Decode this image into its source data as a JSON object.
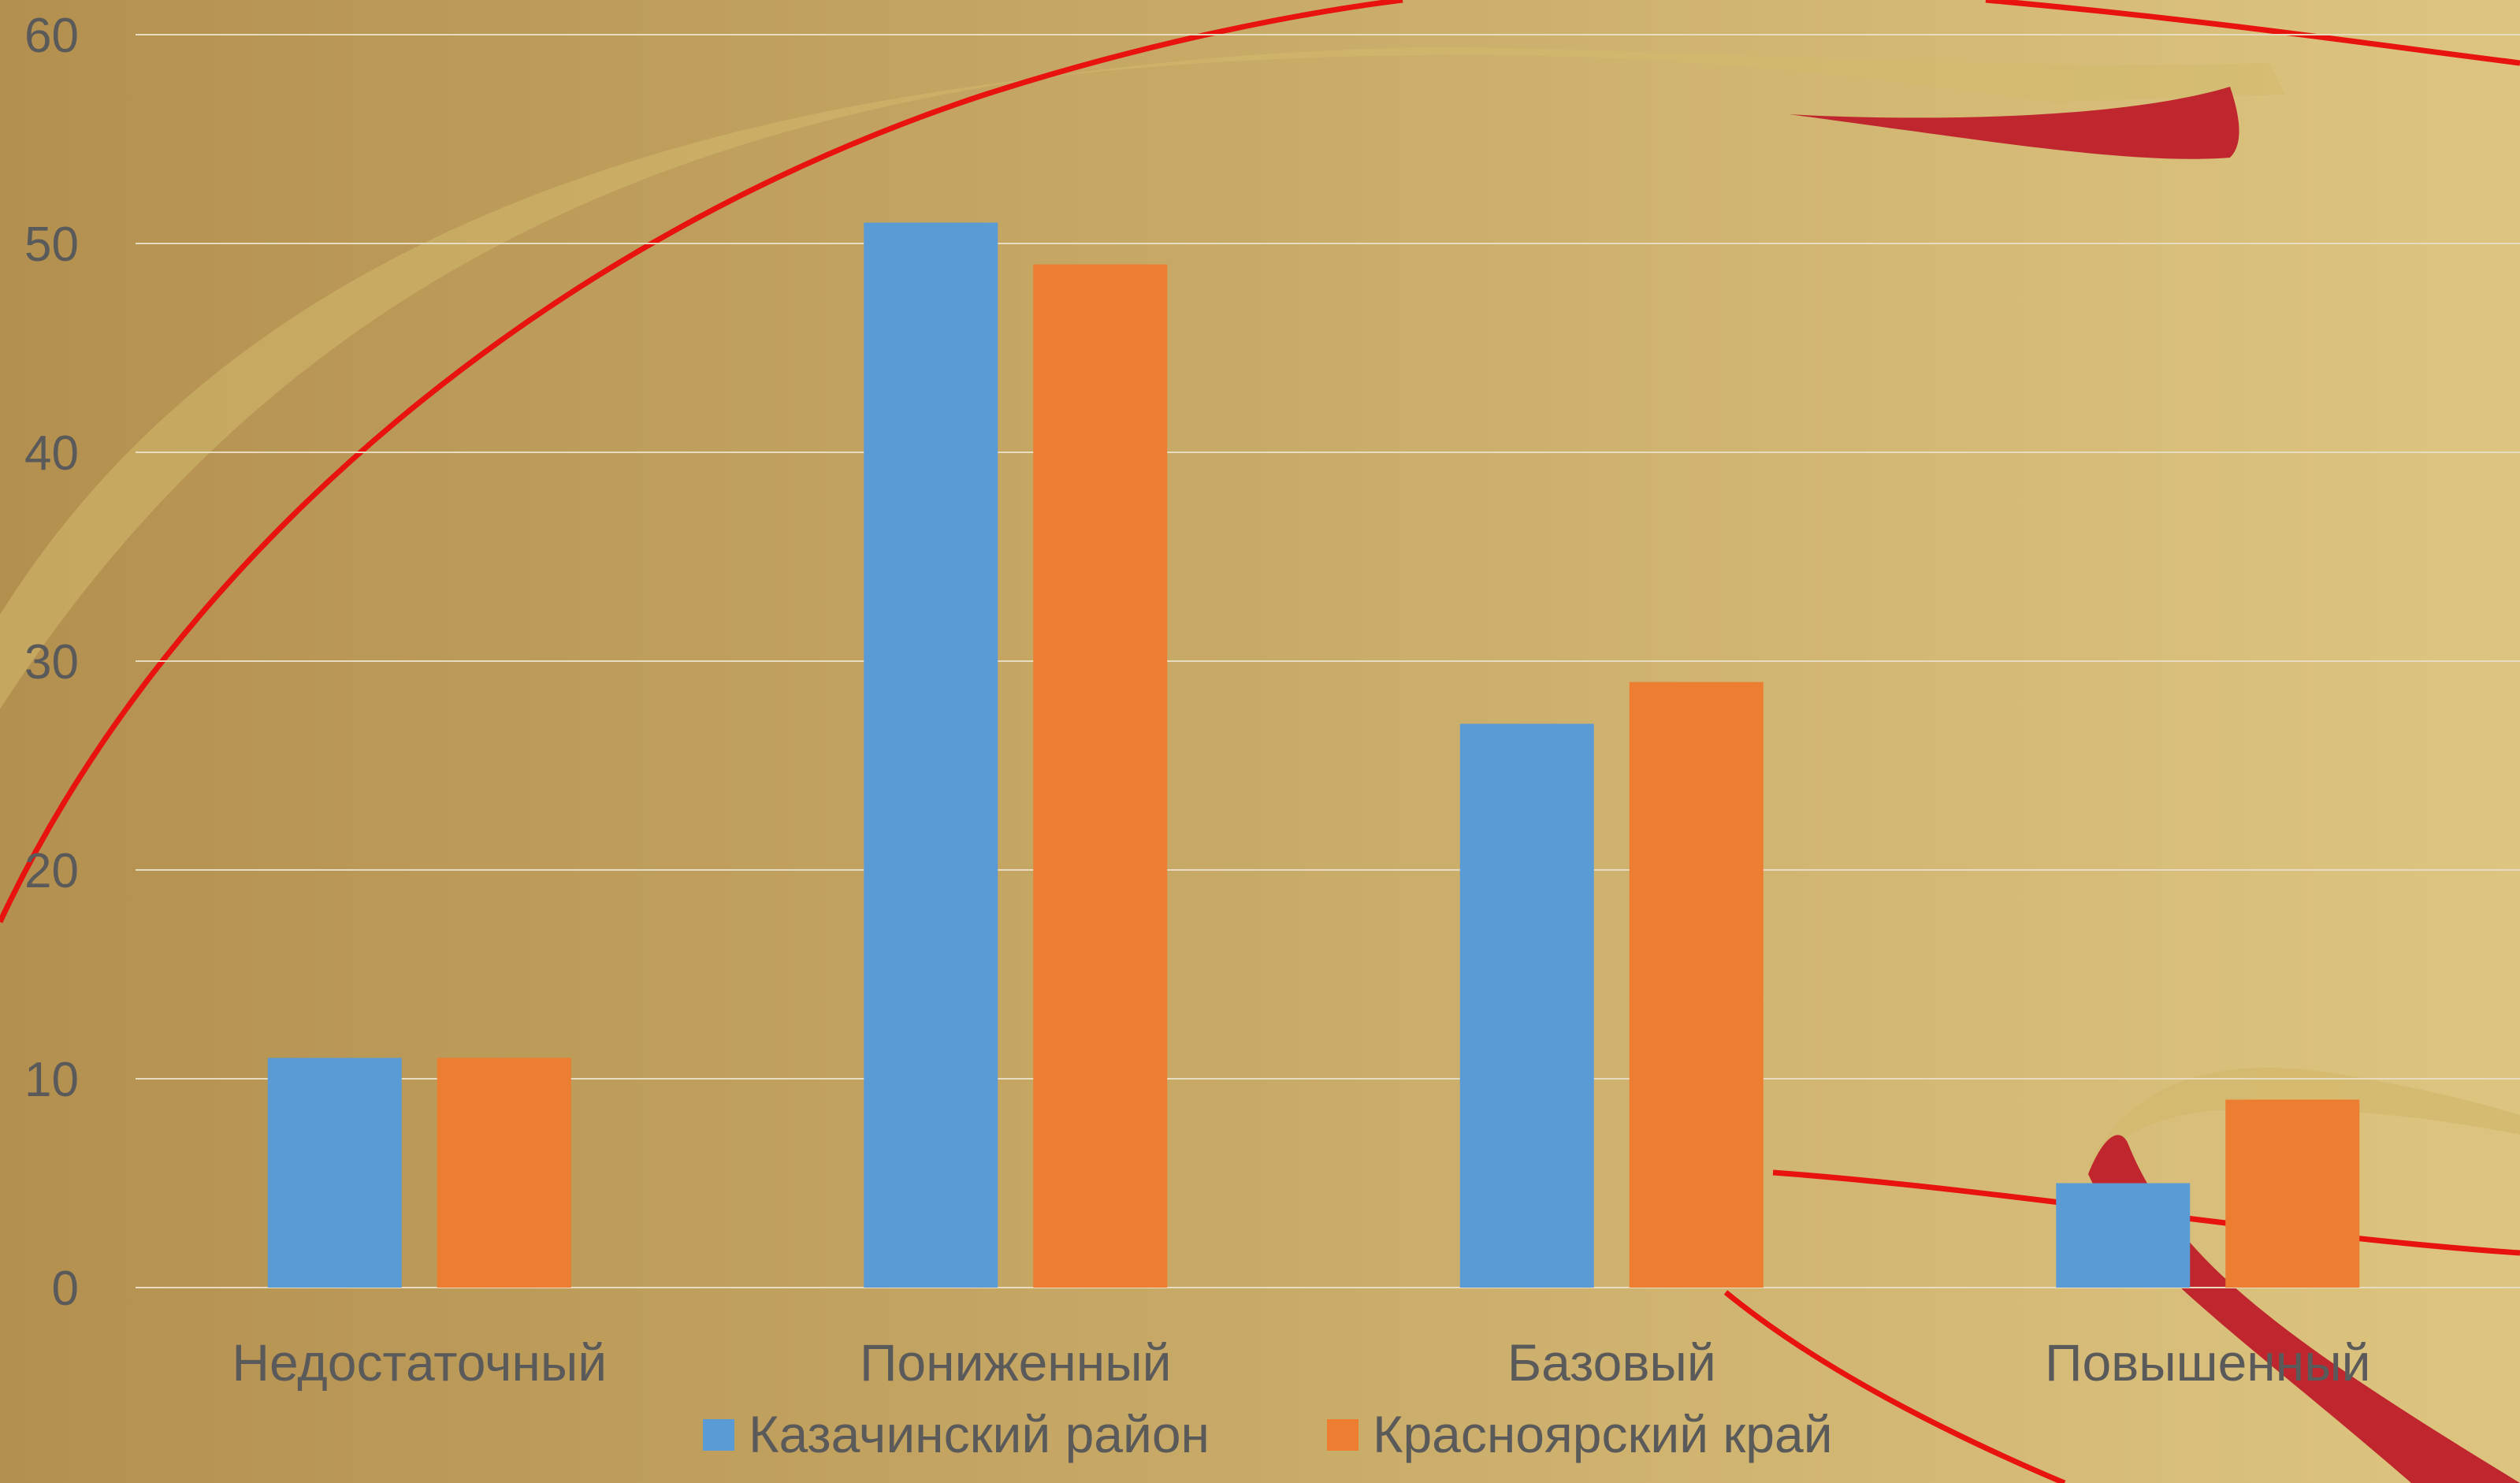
{
  "colors": {
    "background_left": "#b4904f",
    "background_right": "#ddc580",
    "ribbon_gold": "#d4b96e",
    "ribbon_red": "#c0262d",
    "line_red": "#e8120e",
    "gridline": "#e8dcc0",
    "text": "#5a5a5a"
  },
  "chart_data": {
    "type": "bar",
    "title": "",
    "xlabel": "",
    "ylabel": "",
    "ylim": [
      0,
      60
    ],
    "yticks": [
      0,
      10,
      20,
      30,
      40,
      50,
      60
    ],
    "grid": true,
    "legend_position": "bottom",
    "categories": [
      "Недостаточный",
      "Пониженный",
      "Базовый",
      "Повышенный"
    ],
    "series": [
      {
        "name": "Казачинский район",
        "color": "#5b9bd5",
        "values": [
          11,
          51,
          27,
          5
        ]
      },
      {
        "name": "Красноярский край",
        "color": "#ed7d31",
        "values": [
          11,
          49,
          29,
          9
        ]
      }
    ]
  }
}
